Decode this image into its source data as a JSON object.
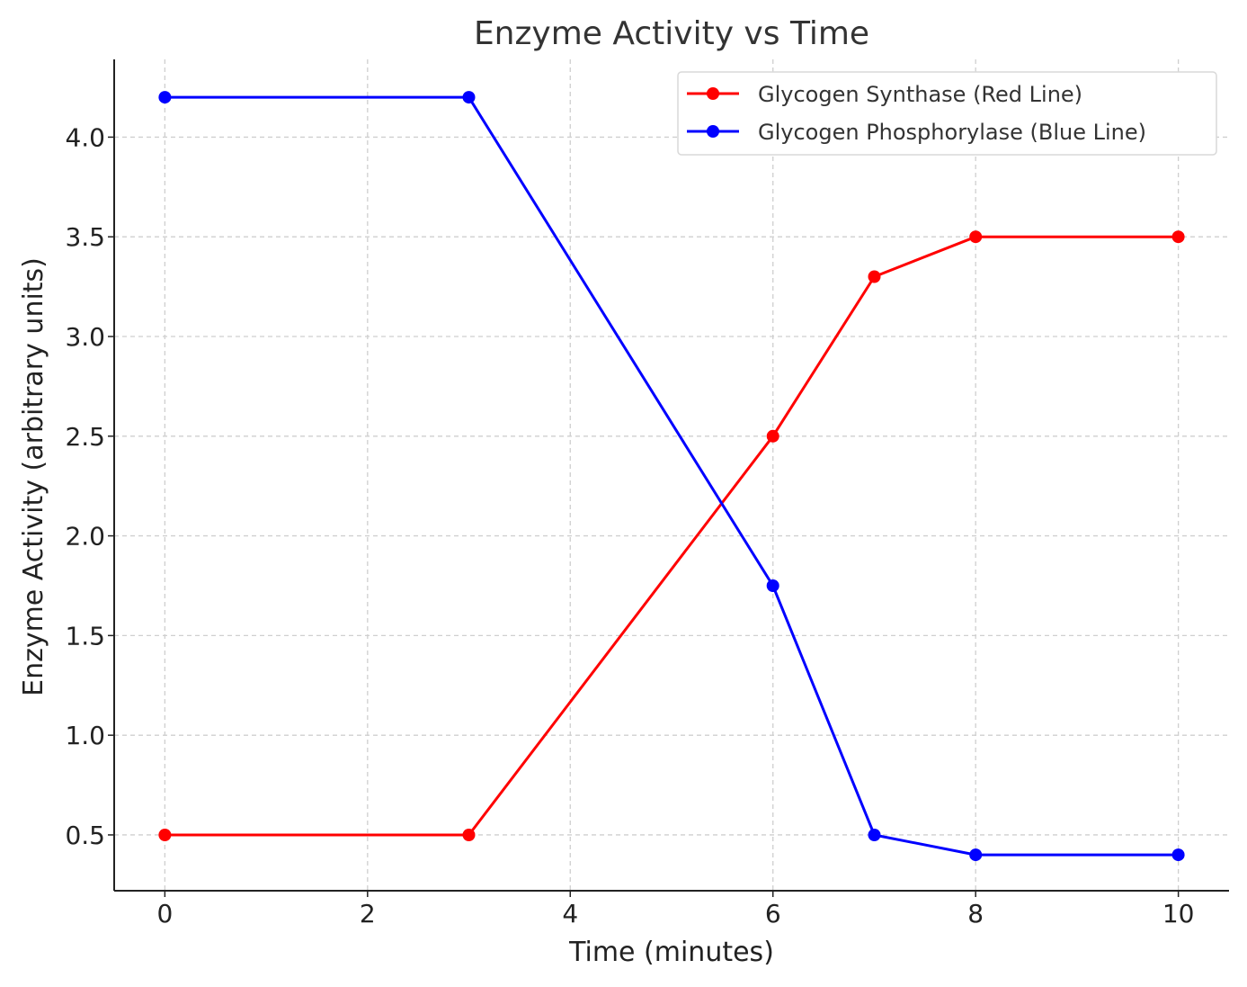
{
  "chart_data": {
    "type": "line",
    "title": "Enzyme Activity vs Time",
    "xlabel": "Time (minutes)",
    "ylabel": "Enzyme Activity (arbitrary units)",
    "xlim": [
      -0.5,
      10.5
    ],
    "ylim": [
      0.22,
      4.39
    ],
    "xticks": [
      0,
      2,
      4,
      6,
      8,
      10
    ],
    "yticks": [
      0.5,
      1.0,
      1.5,
      2.0,
      2.5,
      3.0,
      3.5,
      4.0
    ],
    "xtick_labels": [
      "0",
      "2",
      "4",
      "6",
      "8",
      "10"
    ],
    "ytick_labels": [
      "0.5",
      "1.0",
      "1.5",
      "2.0",
      "2.5",
      "3.0",
      "3.5",
      "4.0"
    ],
    "grid": true,
    "legend_position": "top-right",
    "series": [
      {
        "name": "Glycogen Synthase (Red Line)",
        "color": "#ff0000",
        "marker": "circle",
        "x": [
          0,
          3,
          6,
          7,
          8,
          10
        ],
        "values": [
          0.5,
          0.5,
          2.5,
          3.3,
          3.5,
          3.5
        ]
      },
      {
        "name": "Glycogen Phosphorylase (Blue Line)",
        "color": "#0000ff",
        "marker": "circle",
        "x": [
          0,
          3,
          6,
          7,
          8,
          10
        ],
        "values": [
          4.2,
          4.2,
          1.75,
          0.5,
          0.4,
          0.4
        ]
      }
    ]
  }
}
